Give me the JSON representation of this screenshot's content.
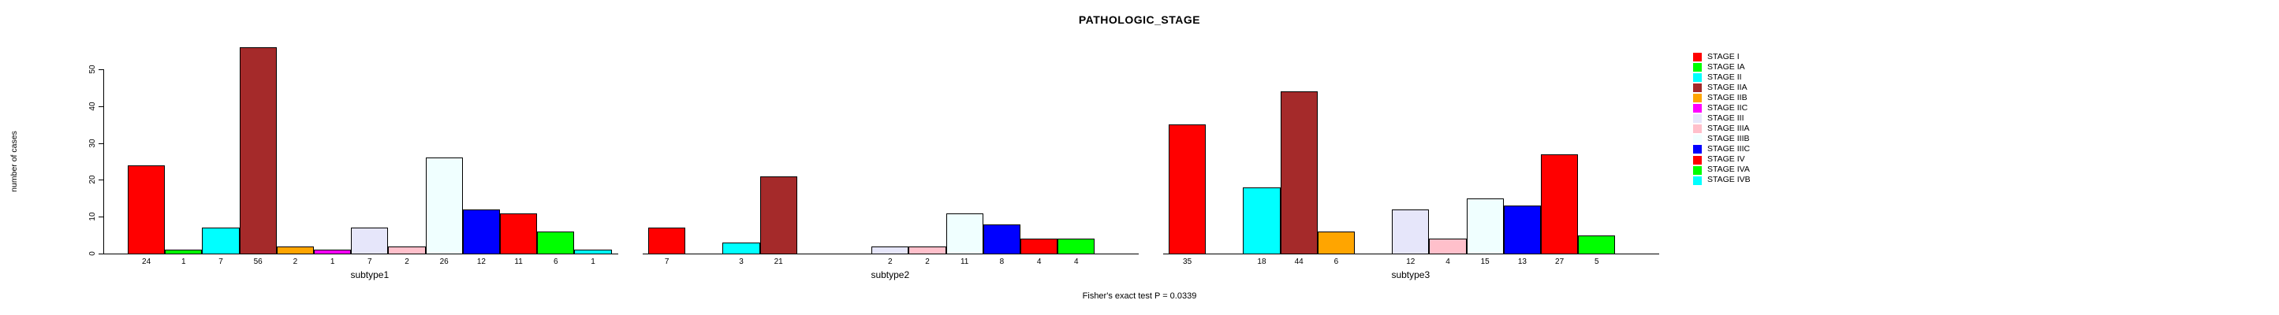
{
  "chart_data": {
    "type": "bar",
    "title": "PATHOLOGIC_STAGE",
    "ylabel": "number of cases",
    "xlabel": "",
    "annotation": "Fisher's exact test P = 0.0339",
    "categories": [
      "STAGE I",
      "STAGE IA",
      "STAGE II",
      "STAGE IIA",
      "STAGE IIB",
      "STAGE IIC",
      "STAGE III",
      "STAGE IIIA",
      "STAGE IIIB",
      "STAGE IIIC",
      "STAGE IV",
      "STAGE IVA",
      "STAGE IVB"
    ],
    "colors": [
      "#FF0000",
      "#00FF00",
      "#00FFFF",
      "#A52A2A",
      "#FFA500",
      "#FF00FF",
      "#E6E6FA",
      "#FFC0CB",
      "#F0FFFF",
      "#0000FF",
      "#FF0000",
      "#00FF00",
      "#00FFFF"
    ],
    "series": [
      {
        "name": "subtype1",
        "values": [
          24,
          1,
          7,
          56,
          2,
          1,
          7,
          2,
          26,
          12,
          11,
          6,
          1
        ]
      },
      {
        "name": "subtype2",
        "values": [
          7,
          0,
          3,
          21,
          0,
          0,
          2,
          2,
          11,
          8,
          4,
          4,
          0
        ]
      },
      {
        "name": "subtype3",
        "values": [
          35,
          0,
          18,
          44,
          6,
          0,
          12,
          4,
          15,
          13,
          27,
          5,
          0
        ]
      }
    ],
    "ylim": [
      0,
      50
    ],
    "yticks": [
      0,
      10,
      20,
      30,
      40,
      50
    ],
    "grid": false,
    "bar_value_labels": true,
    "zero_bars_hidden": true,
    "legend": {
      "position": "right",
      "entries": [
        {
          "label": "STAGE I",
          "color": "#FF0000"
        },
        {
          "label": "STAGE IA",
          "color": "#00FF00"
        },
        {
          "label": "STAGE II",
          "color": "#00FFFF"
        },
        {
          "label": "STAGE IIA",
          "color": "#A52A2A"
        },
        {
          "label": "STAGE IIB",
          "color": "#FFA500"
        },
        {
          "label": "STAGE IIC",
          "color": "#FF00FF"
        },
        {
          "label": "STAGE III",
          "color": "#E6E6FA"
        },
        {
          "label": "STAGE IIIA",
          "color": "#FFC0CB"
        },
        {
          "label": "STAGE IIIB",
          "color": "#F0FFFF"
        },
        {
          "label": "STAGE IIIC",
          "color": "#0000FF"
        },
        {
          "label": "STAGE IV",
          "color": "#FF0000"
        },
        {
          "label": "STAGE IVA",
          "color": "#00FF00"
        },
        {
          "label": "STAGE IVB",
          "color": "#00FFFF"
        }
      ]
    }
  }
}
